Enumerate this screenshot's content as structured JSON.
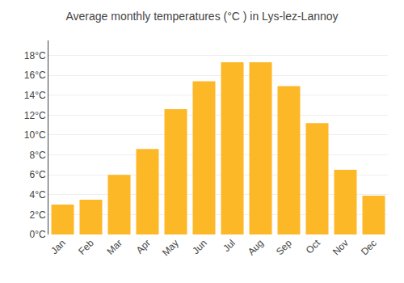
{
  "chart_data": {
    "type": "bar",
    "title": "Average monthly temperatures (°C ) in Lys-lez-Lannoy",
    "categories": [
      "Jan",
      "Feb",
      "Mar",
      "Apr",
      "May",
      "Jun",
      "Jul",
      "Aug",
      "Sep",
      "Oct",
      "Nov",
      "Dec"
    ],
    "values": [
      3.0,
      3.5,
      6.0,
      8.6,
      12.6,
      15.4,
      17.3,
      17.3,
      14.9,
      11.2,
      6.5,
      3.9
    ],
    "color": "#FDB827",
    "ylim": [
      0,
      19.5
    ],
    "yticks": [
      {
        "value": 0,
        "label": "0°C"
      },
      {
        "value": 2,
        "label": "2°C"
      },
      {
        "value": 4,
        "label": "4°C"
      },
      {
        "value": 6,
        "label": "6°C"
      },
      {
        "value": 8,
        "label": "8°C"
      },
      {
        "value": 10,
        "label": "10°C"
      },
      {
        "value": 12,
        "label": "12°C"
      },
      {
        "value": 14,
        "label": "14°C"
      },
      {
        "value": 16,
        "label": "16°C"
      },
      {
        "value": 18,
        "label": "18°C"
      }
    ],
    "grid": true
  }
}
